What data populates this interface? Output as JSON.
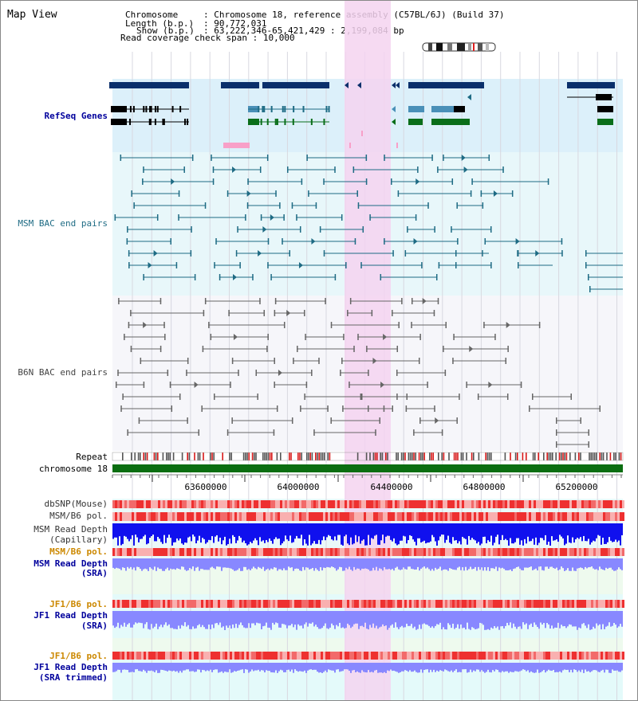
{
  "page": {
    "title": "Map View"
  },
  "info": {
    "chromosome_label": "Chromosome",
    "chromosome_value": "Chromosome 18, reference assembly (C57BL/6J) (Build 37)",
    "length_label": "Length (b.p.)",
    "length_value": "90,772,031",
    "show_label": "Show (b.p.)",
    "show_value": "63,222,346-65,421,429 : 2,199,084 bp",
    "coverage_label": "Read coverage check span",
    "coverage_value": "10,000"
  },
  "tracks": {
    "refseq": "RefSeq Genes",
    "msm_bac": "MSM BAC end pairs",
    "b6n_bac": "B6N BAC end pairs",
    "repeat": "Repeat",
    "chromosome": "chromosome 18",
    "dbsnp": "dbSNP(Mouse)",
    "msm_b6_pol_1": "MSM/B6 pol.",
    "msm_depth_cap_1": "MSM Read Depth",
    "msm_depth_cap_2": "(Capillary)",
    "msm_b6_pol_2": "MSM/B6 pol.",
    "msm_depth_sra_1": "MSM Read Depth",
    "msm_depth_sra_2": "(SRA)",
    "jf1_b6_pol_1": "JF1/B6 pol.",
    "jf1_depth_sra_1": "JF1 Read Depth",
    "jf1_depth_sra_2": "(SRA)",
    "jf1_b6_pol_2": "JF1/B6 pol.",
    "jf1_depth_trim_1": "JF1 Read Depth",
    "jf1_depth_trim_2": "(SRA trimmed)"
  },
  "ruler": {
    "ticks": [
      "63600000",
      "64000000",
      "64400000",
      "64800000",
      "65200000"
    ]
  },
  "colors": {
    "refseq_bg": "#dcf0fa",
    "highlight": "#f5d4f0",
    "gene_dark": "#0a2f6b",
    "gene_green": "#0a6e1a",
    "msm_bac": "#1e6b84",
    "b6n_bac": "#666666",
    "chromosome_bar": "#0b6e11",
    "label_blue": "#00009c",
    "label_orange": "#cc8800",
    "depth_blue": "#1010ee",
    "depth_light": "#8888ff"
  }
}
